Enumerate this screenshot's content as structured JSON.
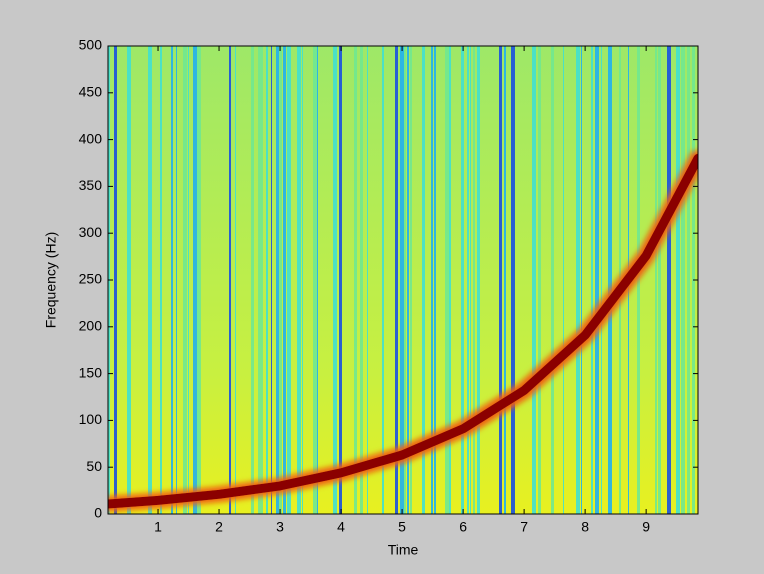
{
  "chart_data": {
    "type": "line",
    "xlabel": "Time",
    "ylabel": "Frequency (Hz)",
    "x": [
      0.18,
      1,
      2,
      3,
      4,
      5,
      6,
      7,
      8,
      9,
      9.85
    ],
    "series": [
      {
        "color": "#8b0000",
        "values": [
          10.7,
          14.5,
          21,
          30,
          44,
          63,
          91,
          132,
          191,
          276,
          380
        ]
      }
    ],
    "xlim": [
      0.18,
      9.85
    ],
    "xticks": [
      1,
      2,
      3,
      4,
      5,
      6,
      7,
      8,
      9
    ],
    "ylim": [
      0,
      500
    ],
    "yticks": [
      0,
      50,
      100,
      150,
      200,
      250,
      300,
      350,
      400,
      450,
      500
    ]
  }
}
